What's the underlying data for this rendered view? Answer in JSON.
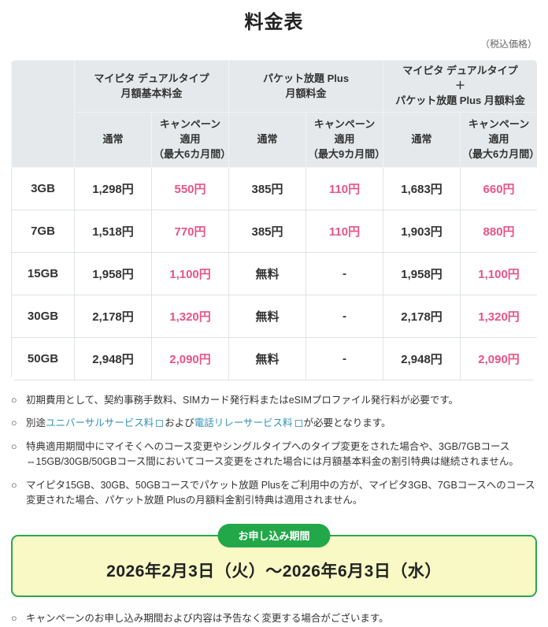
{
  "page": {
    "title": "料金表",
    "tax_note": "（税込価格）"
  },
  "table": {
    "groups": [
      "マイピタ デュアルタイプ\n月額基本料金",
      "パケット放題 Plus\n月額料金",
      "マイピタ デュアルタイプ\n＋\nパケット放題 Plus 月額料金"
    ],
    "sub_normal": "通常",
    "campaign": [
      "キャンペーン\n適用\n（最大6カ月間）",
      "キャンペーン\n適用\n（最大9カ月間）",
      "キャンペーン\n適用\n（最大6カ月間）"
    ],
    "rows": [
      {
        "label": "3GB",
        "cells": [
          "1,298円",
          "550円",
          "385円",
          "110円",
          "1,683円",
          "660円"
        ]
      },
      {
        "label": "7GB",
        "cells": [
          "1,518円",
          "770円",
          "385円",
          "110円",
          "1,903円",
          "880円"
        ]
      },
      {
        "label": "15GB",
        "cells": [
          "1,958円",
          "1,100円",
          "無料",
          "-",
          "1,958円",
          "1,100円"
        ]
      },
      {
        "label": "30GB",
        "cells": [
          "2,178円",
          "1,320円",
          "無料",
          "-",
          "2,178円",
          "1,320円"
        ]
      },
      {
        "label": "50GB",
        "cells": [
          "2,948円",
          "2,090円",
          "無料",
          "-",
          "2,948円",
          "2,090円"
        ]
      }
    ]
  },
  "notes": {
    "marker": "○",
    "note1": "初期費用として、契約事務手数料、SIMカード発行料またはeSIMプロファイル発行料が必要です。",
    "note2": {
      "prefix": "別途",
      "link1": "ユニバーサルサービス料",
      "middle": "および",
      "link2": "電話リレーサービス料",
      "suffix": "が必要となります。"
    },
    "note3": "特典適用期間中にマイそくへのコース変更やシングルタイプへのタイプ変更をされた場合や、3GB/7GBコース⇔15GB/30GB/50GBコース間においてコース変更をされた場合には月額基本料金の割引特典は継続されません。",
    "note4": "マイピタ15GB、30GB、50GBコースでパケット放題 Plusをご利用中の方が、マイピタ3GB、7GBコースへのコース変更された場合、パケット放題 Plusの月額料金割引特典は適用されません。",
    "footer": "キャンペーンのお申し込み期間および内容は予告なく変更する場合がございます。"
  },
  "application_period": {
    "badge": "お申し込み期間",
    "dates": "2026年2月3日（火）～2026年6月3日（水）"
  },
  "colors": {
    "campaign_pink": "#e75488",
    "header_gray": "#e5e9eb",
    "badge_green": "#22a749",
    "box_yellow": "#f8f9c5",
    "link_teal": "#3392b4"
  }
}
